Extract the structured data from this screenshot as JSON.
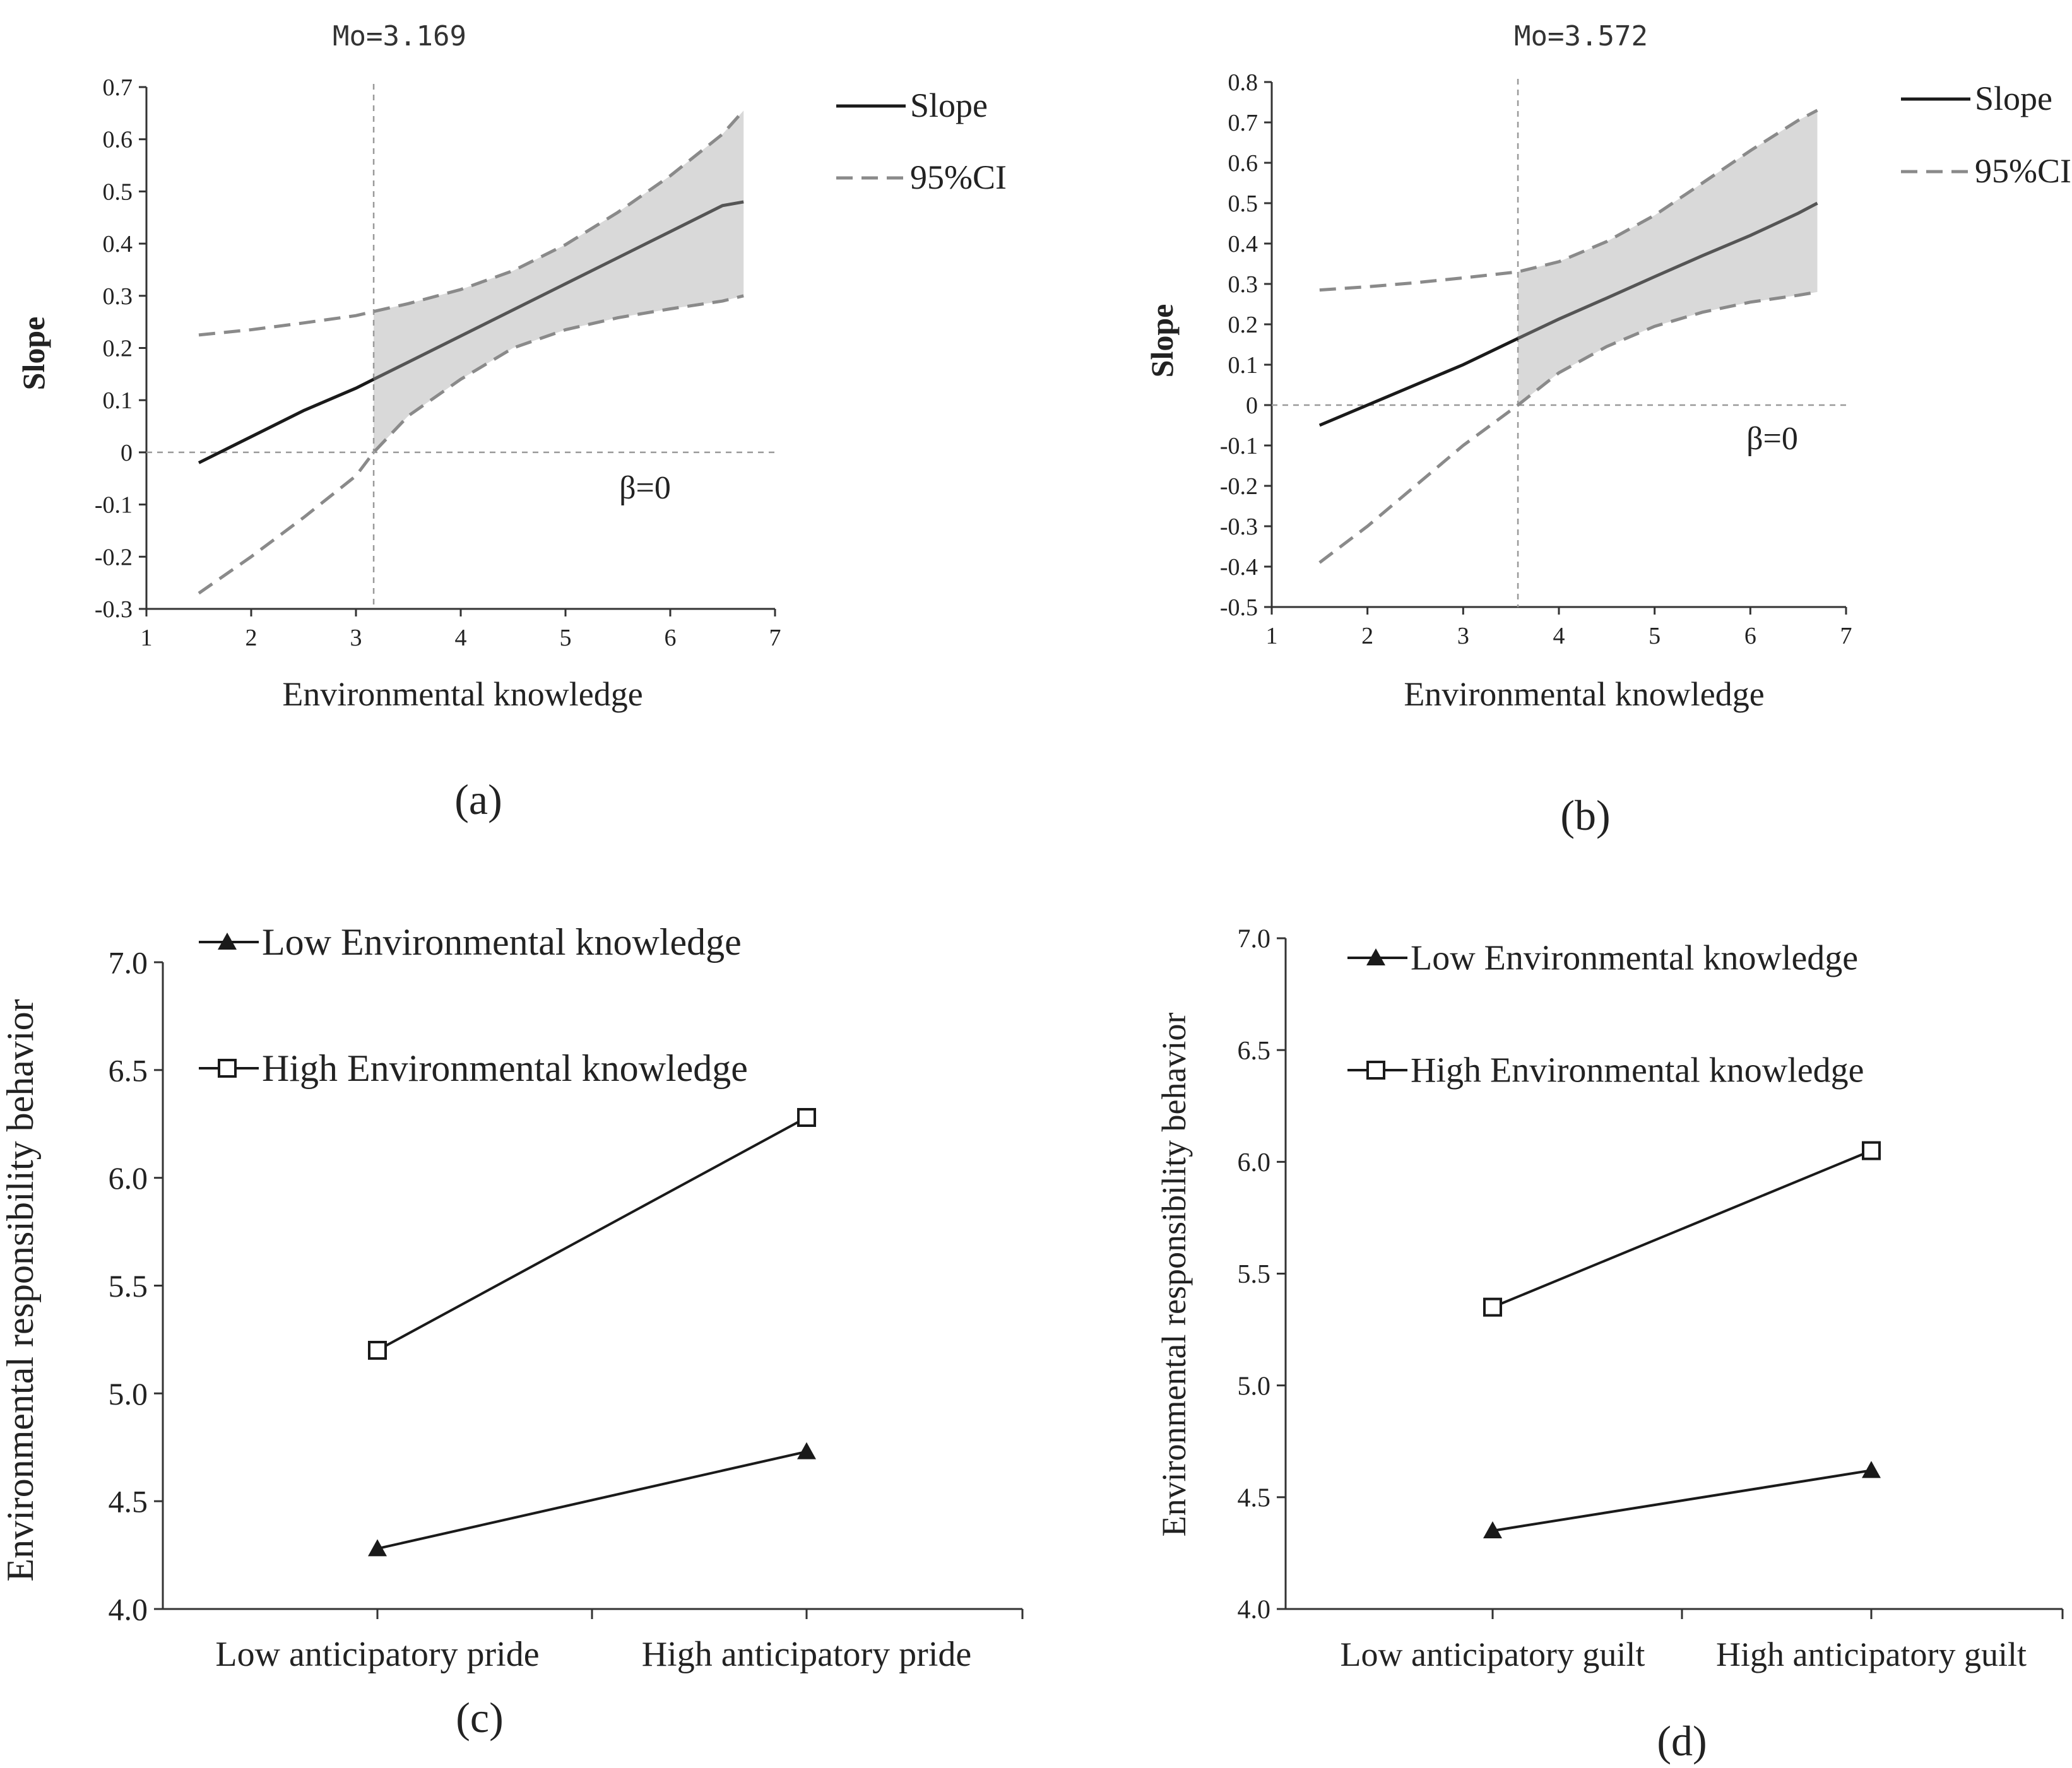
{
  "colors": {
    "axis": "#333333",
    "line": "#1a1a1a",
    "ci": "#8a8a8a",
    "band": "#d9d9d9",
    "ref": "#9a9a9a"
  },
  "chart_data": [
    {
      "panel": "a",
      "type": "line",
      "caption": "(a)",
      "title": "Mo=3.169",
      "xlabel": "Environmental knowledge",
      "ylabel": "Slope",
      "xlim": [
        1,
        7
      ],
      "ylim": [
        -0.3,
        0.7
      ],
      "xticks": [
        "1",
        "2",
        "3",
        "4",
        "5",
        "6",
        "7"
      ],
      "yticks": [
        "-0.3",
        "-0.2",
        "-0.1",
        "0",
        "0.1",
        "0.2",
        "0.3",
        "0.4",
        "0.5",
        "0.6",
        "0.7"
      ],
      "mo": 3.169,
      "annotation": "β=0",
      "legend": [
        "Slope",
        "95%CI"
      ],
      "x": [
        1.5,
        2,
        2.5,
        3,
        3.169,
        3.5,
        4,
        4.5,
        5,
        5.5,
        6,
        6.5,
        6.7
      ],
      "series": [
        {
          "name": "Slope",
          "values": [
            -0.02,
            0.03,
            0.08,
            0.123,
            0.14,
            0.173,
            0.223,
            0.273,
            0.323,
            0.373,
            0.423,
            0.473,
            0.48
          ]
        },
        {
          "name": "95%CI upper",
          "values": [
            0.225,
            0.235,
            0.248,
            0.262,
            0.27,
            0.285,
            0.312,
            0.348,
            0.398,
            0.46,
            0.53,
            0.61,
            0.655
          ]
        },
        {
          "name": "95%CI lower",
          "values": [
            -0.27,
            -0.2,
            -0.125,
            -0.045,
            0.0,
            0.07,
            0.14,
            0.2,
            0.235,
            0.258,
            0.275,
            0.29,
            0.3
          ]
        }
      ]
    },
    {
      "panel": "b",
      "type": "line",
      "caption": "(b)",
      "title": "Mo=3.572",
      "xlabel": "Environmental knowledge",
      "ylabel": "Slope",
      "xlim": [
        1,
        7
      ],
      "ylim": [
        -0.5,
        0.8
      ],
      "xticks": [
        "1",
        "2",
        "3",
        "4",
        "5",
        "6",
        "7"
      ],
      "yticks": [
        "-0.5",
        "-0.4",
        "-0.3",
        "-0.2",
        "-0.1",
        "0",
        "0.1",
        "0.2",
        "0.3",
        "0.4",
        "0.5",
        "0.6",
        "0.7",
        "0.8"
      ],
      "mo": 3.572,
      "annotation": "β=0",
      "legend": [
        "Slope",
        "95%CI"
      ],
      "x": [
        1.5,
        2,
        2.5,
        3,
        3.572,
        4,
        4.5,
        5,
        5.5,
        6,
        6.5,
        6.7
      ],
      "series": [
        {
          "name": "Slope",
          "values": [
            -0.05,
            0.0,
            0.05,
            0.1,
            0.165,
            0.213,
            0.265,
            0.318,
            0.37,
            0.42,
            0.475,
            0.5
          ]
        },
        {
          "name": "95%CI upper",
          "values": [
            0.285,
            0.293,
            0.303,
            0.315,
            0.33,
            0.355,
            0.405,
            0.47,
            0.55,
            0.63,
            0.705,
            0.73
          ]
        },
        {
          "name": "95%CI lower",
          "values": [
            -0.39,
            -0.3,
            -0.2,
            -0.1,
            0.0,
            0.08,
            0.145,
            0.195,
            0.23,
            0.255,
            0.272,
            0.28
          ]
        }
      ]
    },
    {
      "panel": "c",
      "type": "line",
      "caption": "(c)",
      "xlabel": "",
      "ylabel": "Environmental responsibility behavior",
      "ylim": [
        4.0,
        7.0
      ],
      "yticks": [
        "4.0",
        "4.5",
        "5.0",
        "5.5",
        "6.0",
        "6.5",
        "7.0"
      ],
      "categories": [
        "Low anticipatory pride",
        "High anticipatory pride"
      ],
      "series": [
        {
          "name": "Low Environmental knowledge",
          "marker": "triangle",
          "values": [
            4.28,
            4.73
          ]
        },
        {
          "name": "High Environmental knowledge",
          "marker": "square",
          "values": [
            5.2,
            6.28
          ]
        }
      ]
    },
    {
      "panel": "d",
      "type": "line",
      "caption": "(d)",
      "xlabel": "",
      "ylabel": "Environmental responsibility behavior",
      "ylim": [
        4.0,
        7.0
      ],
      "yticks": [
        "4.0",
        "4.5",
        "5.0",
        "5.5",
        "6.0",
        "6.5",
        "7.0"
      ],
      "categories": [
        "Low anticipatory guilt",
        "High anticipatory guilt"
      ],
      "series": [
        {
          "name": "Low Environmental knowledge",
          "marker": "triangle",
          "values": [
            4.35,
            4.62
          ]
        },
        {
          "name": "High Environmental knowledge",
          "marker": "square",
          "values": [
            5.35,
            6.05
          ]
        }
      ]
    }
  ]
}
